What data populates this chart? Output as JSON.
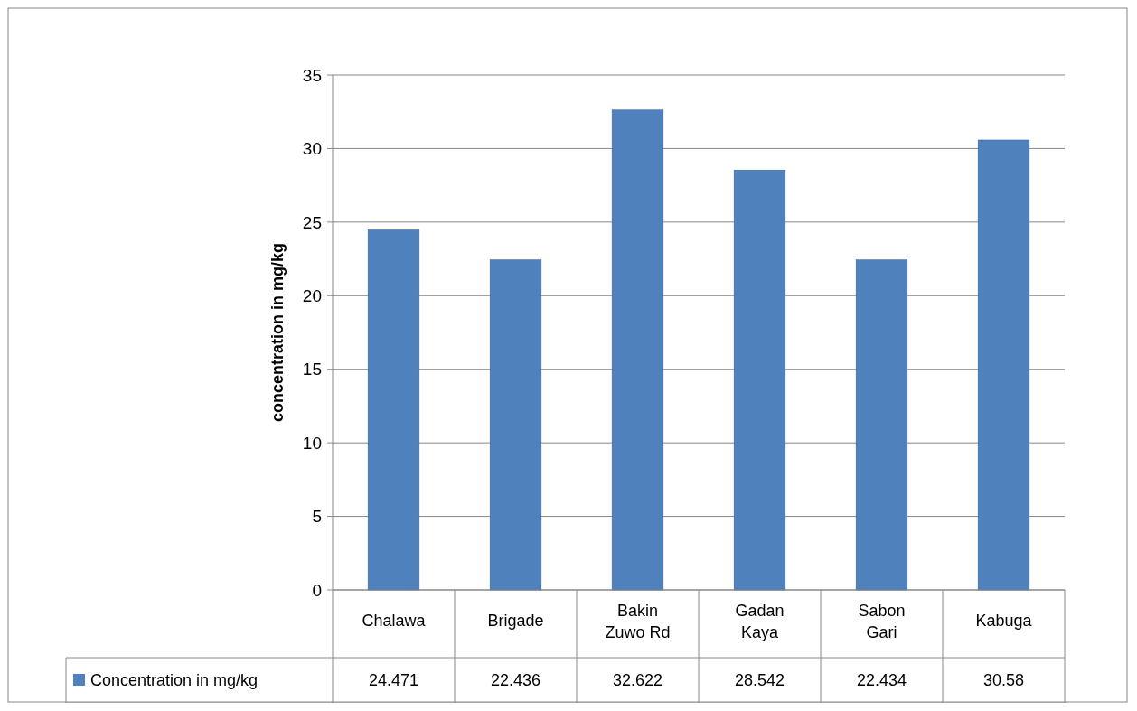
{
  "chart_data": {
    "type": "bar",
    "ylabel": "concentration in mg/kg",
    "categories": [
      "Chalawa",
      "Brigade",
      "Bakin Zuwo Rd",
      "Gadan Kaya",
      "Sabon Gari",
      "Kabuga"
    ],
    "series": [
      {
        "name": "Concentration in mg/kg",
        "color": "#4f81bd",
        "values": [
          24.471,
          22.436,
          32.622,
          28.542,
          22.434,
          30.58
        ]
      }
    ],
    "ylim": [
      0,
      35
    ],
    "yticks": [
      0,
      5,
      10,
      15,
      20,
      25,
      30,
      35
    ],
    "grid": "y",
    "data_labels": true,
    "legend": "bottom"
  }
}
